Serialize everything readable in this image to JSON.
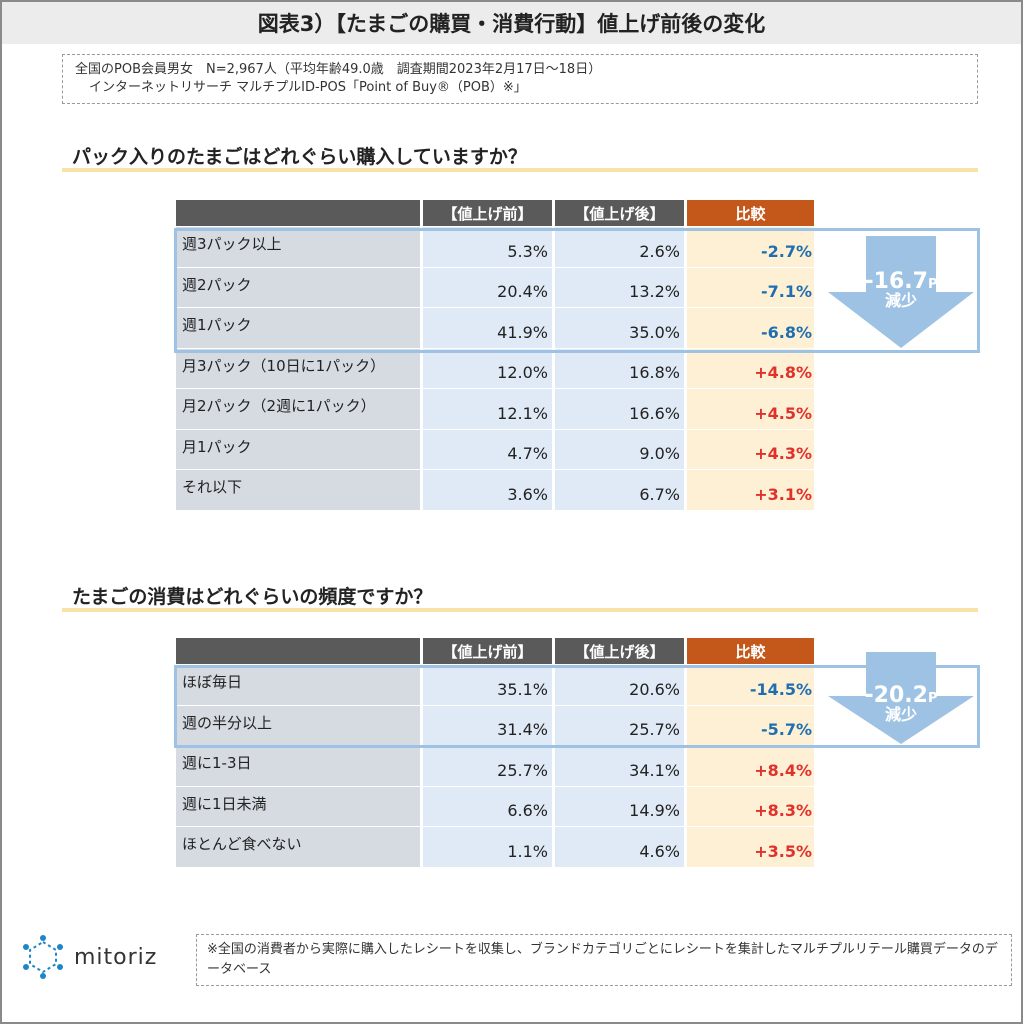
{
  "title": "図表3）【たまごの購買・消費行動】値上げ前後の変化",
  "survey": {
    "line1": "全国のPOB会員男女　N=2,967人（平均年齢49.0歳　調査期間2023年2月17日〜18日）",
    "line2": "インターネットリサーチ マルチプルID-POS「Point of Buy®（POB）※」"
  },
  "section1": {
    "title": "パック入りのたまごはどれぐらい購入していますか？",
    "headers": {
      "before": "【値上げ前】",
      "after": "【値上げ後】",
      "diff": "比較"
    },
    "rows": [
      {
        "label": "週3パック以上",
        "before": "5.3%",
        "after": "2.6%",
        "diff": "-2.7%"
      },
      {
        "label": "週2パック",
        "before": "20.4%",
        "after": "13.2%",
        "diff": "-7.1%"
      },
      {
        "label": "週1パック",
        "before": "41.9%",
        "after": "35.0%",
        "diff": "-6.8%"
      },
      {
        "label": "月3パック（10日に1パック）",
        "before": "12.0%",
        "after": "16.8%",
        "diff": "+4.8%"
      },
      {
        "label": "月2パック（2週に1パック）",
        "before": "12.1%",
        "after": "16.6%",
        "diff": "+4.5%"
      },
      {
        "label": "月1パック",
        "before": "4.7%",
        "after": "9.0%",
        "diff": "+4.3%"
      },
      {
        "label": "それ以下",
        "before": "3.6%",
        "after": "6.7%",
        "diff": "+3.1%"
      }
    ],
    "arrow": {
      "value": "-16.7",
      "unit": "P",
      "label": "減少"
    }
  },
  "section2": {
    "title": "たまごの消費はどれぐらいの頻度ですか？",
    "headers": {
      "before": "【値上げ前】",
      "after": "【値上げ後】",
      "diff": "比較"
    },
    "rows": [
      {
        "label": "ほぼ毎日",
        "before": "35.1%",
        "after": "20.6%",
        "diff": "-14.5%"
      },
      {
        "label": "週の半分以上",
        "before": "31.4%",
        "after": "25.7%",
        "diff": "-5.7%"
      },
      {
        "label": "週に1-3日",
        "before": "25.7%",
        "after": "34.1%",
        "diff": "+8.4%"
      },
      {
        "label": "週に1日未満",
        "before": "6.6%",
        "after": "14.9%",
        "diff": "+8.3%"
      },
      {
        "label": "ほとんど食べない",
        "before": "1.1%",
        "after": "4.6%",
        "diff": "+3.5%"
      }
    ],
    "arrow": {
      "value": "-20.2",
      "unit": "P",
      "label": "減少"
    }
  },
  "logo": {
    "text": "mitoriz"
  },
  "footnote": "※全国の消費者から実際に購入したレシートを収集し、ブランドカテゴリごとにレシートを集計したマルチプルリテール購買データのデータベース",
  "colors": {
    "header_gray": "#5a5a5a",
    "header_orange": "#c4581b",
    "negative": "#1f6fb0",
    "positive": "#e0312b",
    "arrow": "#9ec2e3"
  }
}
